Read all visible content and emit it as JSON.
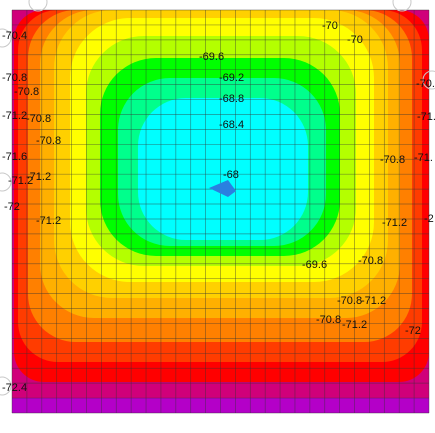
{
  "chart_data": {
    "type": "heatmap",
    "colors": {
      "magenta": "#d0007a",
      "purple": "#b400c8",
      "red": "#ff0000",
      "red_orange": "#ff3c00",
      "orange": "#ff8000",
      "orange_yellow": "#ffb000",
      "gold": "#ffd000",
      "yellow": "#ffff00",
      "yellow_green": "#b4ff00",
      "green": "#00ff00",
      "sea_green": "#00ff8c",
      "cyan": "#00ffff",
      "blue_marker": "#2a7fe0"
    },
    "grid": true,
    "bands": [
      {
        "color": "magenta"
      },
      {
        "color": "red"
      },
      {
        "color": "red_orange"
      },
      {
        "color": "orange"
      },
      {
        "color": "orange_yellow"
      },
      {
        "color": "gold"
      },
      {
        "color": "yellow"
      },
      {
        "color": "yellow_green"
      },
      {
        "color": "green"
      },
      {
        "color": "sea_green"
      },
      {
        "color": "cyan"
      }
    ],
    "contour_labels": [
      {
        "text": "-70.4"
      },
      {
        "text": "-70"
      },
      {
        "text": "-70"
      },
      {
        "text": "-69.6"
      },
      {
        "text": "-69.2"
      },
      {
        "text": "-68.8"
      },
      {
        "text": "-68.4"
      },
      {
        "text": "-68"
      },
      {
        "text": "-70.8"
      },
      {
        "text": "-70.8"
      },
      {
        "text": "-71.2"
      },
      {
        "text": "-70.8"
      },
      {
        "text": "-70.8"
      },
      {
        "text": "-71.6"
      },
      {
        "text": "-71.2"
      },
      {
        "text": "-71.2"
      },
      {
        "text": "-72"
      },
      {
        "text": "-71.2"
      },
      {
        "text": "-70."
      },
      {
        "text": "-71."
      },
      {
        "text": "-70.8"
      },
      {
        "text": "-71."
      },
      {
        "text": "-71.2"
      },
      {
        "text": "-2"
      },
      {
        "text": "-69.6"
      },
      {
        "text": "-70.8"
      },
      {
        "text": "-70.8"
      },
      {
        "text": "-71.2"
      },
      {
        "text": "-70.8"
      },
      {
        "text": "-71.2"
      },
      {
        "text": "-72"
      },
      {
        "text": "-72.4"
      }
    ]
  }
}
